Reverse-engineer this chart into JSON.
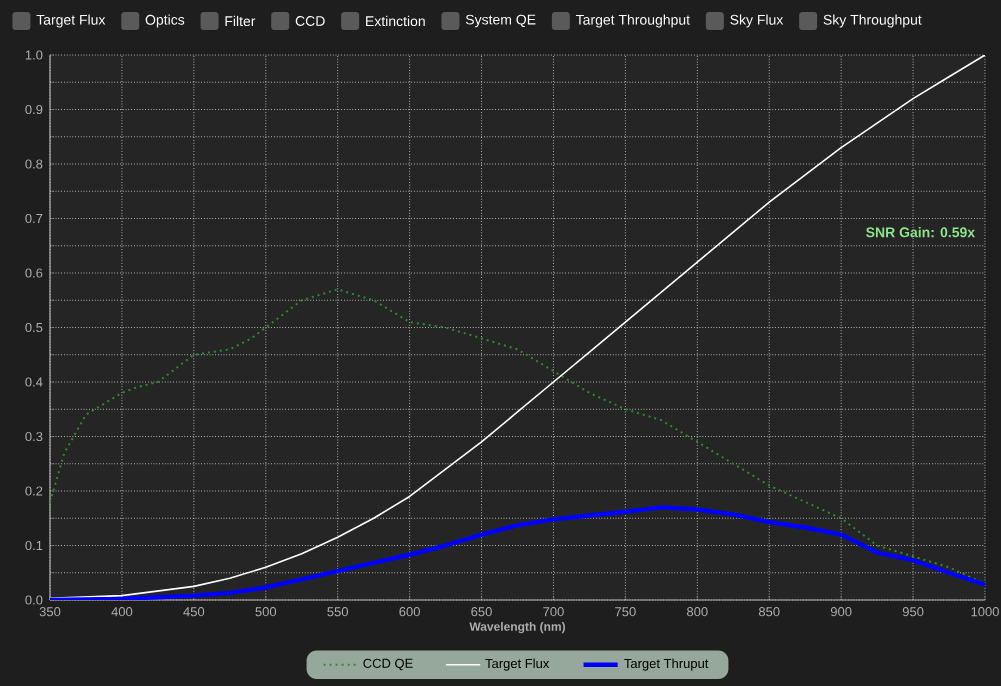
{
  "chart_data": {
    "type": "line",
    "xlabel": "Wavelength (nm)",
    "x": [
      350,
      360,
      375,
      400,
      410,
      425,
      450,
      475,
      490,
      500,
      525,
      550,
      575,
      600,
      625,
      650,
      675,
      700,
      725,
      750,
      775,
      800,
      825,
      850,
      875,
      900,
      925,
      950,
      975,
      1000
    ],
    "series": [
      {
        "name": "CCD QE",
        "color": "#2e8b2e",
        "line_style": "dotted",
        "values": [
          0.18,
          0.27,
          0.34,
          0.38,
          0.39,
          0.4,
          0.45,
          0.46,
          0.48,
          0.5,
          0.55,
          0.57,
          0.55,
          0.51,
          0.5,
          0.48,
          0.46,
          0.42,
          0.38,
          0.35,
          0.33,
          0.29,
          0.25,
          0.21,
          0.18,
          0.15,
          0.1,
          0.08,
          0.06,
          0.03
        ]
      },
      {
        "name": "Target Flux",
        "color": "#ffffff",
        "line_style": "solid",
        "x": [
          350,
          400,
          450,
          475,
          500,
          525,
          550,
          575,
          600,
          625,
          650,
          675,
          700,
          725,
          750,
          775,
          800,
          825,
          850,
          875,
          900,
          925,
          950,
          975,
          1000
        ],
        "values": [
          0.003,
          0.008,
          0.025,
          0.04,
          0.06,
          0.085,
          0.115,
          0.15,
          0.19,
          0.24,
          0.29,
          0.345,
          0.4,
          0.455,
          0.51,
          0.565,
          0.62,
          0.675,
          0.73,
          0.78,
          0.83,
          0.875,
          0.92,
          0.96,
          1.0
        ]
      },
      {
        "name": "Target Thruput",
        "color": "#0000ff",
        "line_style": "solid",
        "x": [
          350,
          400,
          450,
          475,
          500,
          525,
          550,
          575,
          600,
          625,
          650,
          675,
          700,
          725,
          750,
          775,
          800,
          825,
          850,
          875,
          900,
          925,
          950,
          975,
          1000
        ],
        "values": [
          0.0,
          0.002,
          0.008,
          0.013,
          0.023,
          0.038,
          0.053,
          0.068,
          0.083,
          0.1,
          0.12,
          0.137,
          0.148,
          0.155,
          0.162,
          0.17,
          0.166,
          0.157,
          0.143,
          0.133,
          0.12,
          0.087,
          0.073,
          0.05,
          0.028
        ]
      }
    ],
    "xlim": [
      350,
      1000
    ],
    "ylim": [
      0,
      1.0
    ],
    "xticks": [
      350,
      400,
      450,
      500,
      550,
      600,
      650,
      700,
      750,
      800,
      850,
      900,
      950,
      1000
    ],
    "yticks": [
      {
        "value": 0,
        "label": "0.0"
      },
      {
        "value": 0.05,
        "label": null
      },
      0.1,
      {
        "value": 0.15,
        "label": null
      },
      0.2,
      {
        "value": 0.25,
        "label": null
      },
      0.3,
      {
        "value": 0.35,
        "label": null
      },
      0.4,
      {
        "value": 0.45,
        "label": null
      },
      0.5,
      {
        "value": 0.55,
        "label": null
      },
      0.6,
      {
        "value": 0.65,
        "label": null
      },
      0.7,
      {
        "value": 0.75,
        "label": null
      },
      0.8,
      {
        "value": 0.85,
        "label": null
      },
      0.9,
      {
        "value": 0.95,
        "label": null
      },
      {
        "value": 1.0,
        "label": "1.0"
      }
    ],
    "grid": true,
    "legend": "bottom",
    "marker": "none",
    "annotations": [
      "SNR Gain: 0.59x",
      "Target Flux",
      "Optics",
      "Filter",
      "CCD",
      "Extinction",
      "System QE",
      "Target Throughput",
      "Sky Flux",
      "Sky Throughput"
    ]
  }
}
